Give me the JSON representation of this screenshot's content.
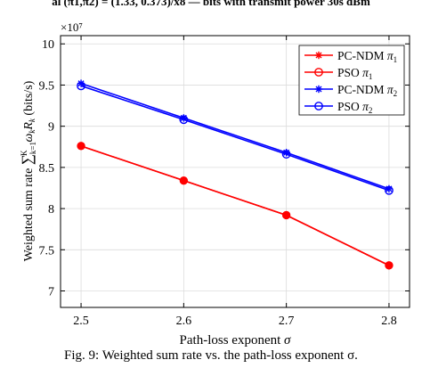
{
  "top_text": "al (π1,π2) = (1.33, 0.373)/x8 — bits with transmit power 30s dBm",
  "caption": "Fig. 9: Weighted sum rate vs. the path-loss exponent σ.",
  "chart_data": {
    "type": "line",
    "xlabel": "Path-loss exponent σ",
    "ylabel": "Weighted sum rate ∑ k=1 K ω k R k (bits/s)",
    "y_multiplier": "×10⁷",
    "xlim": [
      2.48,
      2.82
    ],
    "ylim": [
      6.8,
      10.1
    ],
    "xticks": [
      2.5,
      2.6,
      2.7,
      2.8
    ],
    "yticks": [
      7,
      7.5,
      8,
      8.5,
      9,
      9.5,
      10
    ],
    "grid": true,
    "legend_position": "top-right",
    "x": [
      2.5,
      2.6,
      2.7,
      2.8
    ],
    "series": [
      {
        "name": "PC-NDM π1",
        "values": [
          8.76,
          8.34,
          7.92,
          7.31
        ],
        "color": "#ff0000",
        "marker": "star",
        "label_base": "PC-NDM ",
        "label_sub": "1"
      },
      {
        "name": "PSO π1",
        "values": [
          8.76,
          8.34,
          7.92,
          7.31
        ],
        "color": "#ff0000",
        "marker": "circle",
        "label_base": "PSO ",
        "label_sub": "1"
      },
      {
        "name": "PC-NDM π2",
        "values": [
          9.52,
          9.1,
          8.68,
          8.24
        ],
        "color": "#0000ff",
        "marker": "star",
        "label_base": "PC-NDM ",
        "label_sub": "2"
      },
      {
        "name": "PSO π2",
        "values": [
          9.49,
          9.08,
          8.66,
          8.22
        ],
        "color": "#0000ff",
        "marker": "circle",
        "label_base": "PSO ",
        "label_sub": "2"
      }
    ]
  }
}
